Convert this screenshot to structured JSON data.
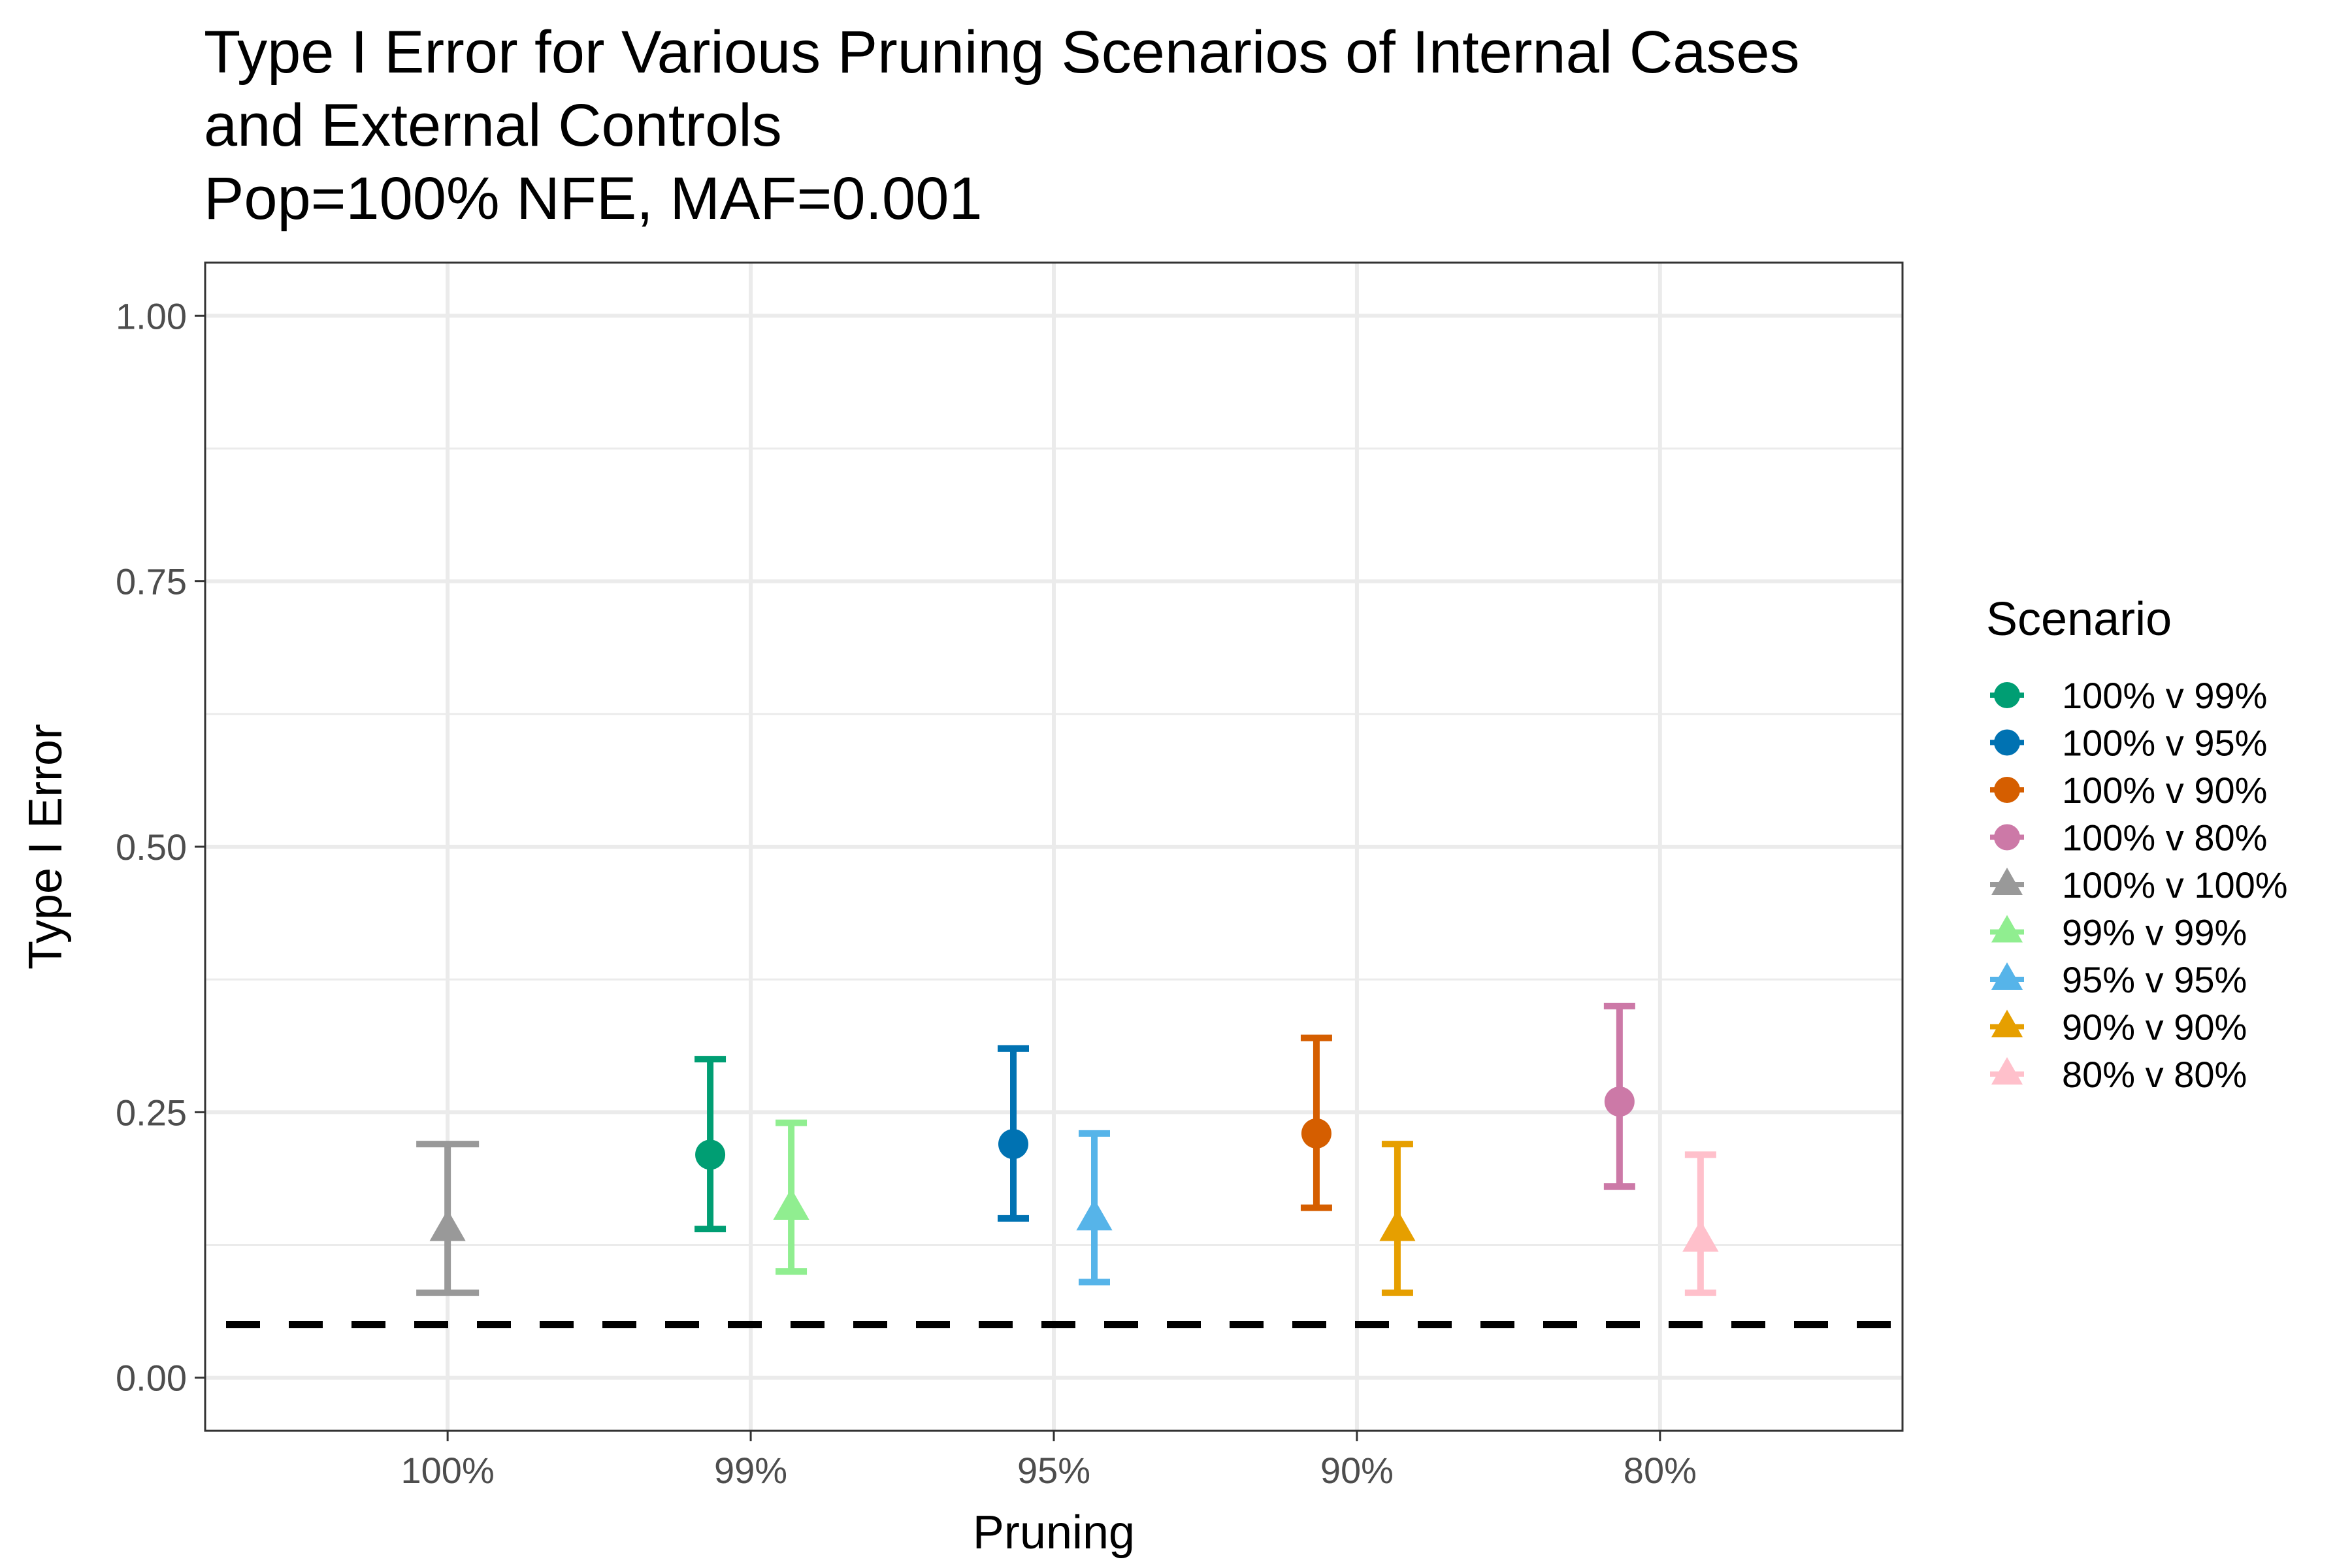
{
  "chart_data": {
    "type": "scatter",
    "title_lines": [
      "Type I Error for Various Pruning Scenarios of Internal Cases",
      "and External Controls",
      "Pop=100% NFE, MAF=0.001"
    ],
    "xlabel": "Pruning",
    "ylabel": "Type I Error",
    "categories": [
      "100%",
      "99%",
      "95%",
      "90%",
      "80%"
    ],
    "ylim": [
      -0.05,
      1.05
    ],
    "yticks": [
      0.0,
      0.25,
      0.5,
      0.75,
      1.0
    ],
    "ytick_labels": [
      "0.00",
      "0.25",
      "0.50",
      "0.75",
      "1.00"
    ],
    "grid": true,
    "reference_line": {
      "y": 0.05,
      "style": "dashed",
      "color": "#000000"
    },
    "legend": {
      "title": "Scenario",
      "placement": "right"
    },
    "series": [
      {
        "name": "100% v 99%",
        "shape": "circle",
        "color": "#009E73",
        "category": "99%",
        "dodge": -1,
        "y": 0.21,
        "ymin": 0.14,
        "ymax": 0.3
      },
      {
        "name": "100% v 95%",
        "shape": "circle",
        "color": "#0072B2",
        "category": "95%",
        "dodge": -1,
        "y": 0.22,
        "ymin": 0.15,
        "ymax": 0.31
      },
      {
        "name": "100% v 90%",
        "shape": "circle",
        "color": "#D55E00",
        "category": "90%",
        "dodge": -1,
        "y": 0.23,
        "ymin": 0.16,
        "ymax": 0.32
      },
      {
        "name": "100% v 80%",
        "shape": "circle",
        "color": "#CC79A7",
        "category": "80%",
        "dodge": -1,
        "y": 0.26,
        "ymin": 0.18,
        "ymax": 0.35
      },
      {
        "name": "100% v 100%",
        "shape": "triangle",
        "color": "#999999",
        "category": "100%",
        "dodge": 0,
        "y": 0.14,
        "ymin": 0.08,
        "ymax": 0.22
      },
      {
        "name": "99% v 99%",
        "shape": "triangle",
        "color": "#90EE90",
        "category": "99%",
        "dodge": 1,
        "y": 0.16,
        "ymin": 0.1,
        "ymax": 0.24
      },
      {
        "name": "95% v 95%",
        "shape": "triangle",
        "color": "#56B4E9",
        "category": "95%",
        "dodge": 1,
        "y": 0.15,
        "ymin": 0.09,
        "ymax": 0.23
      },
      {
        "name": "90% v 90%",
        "shape": "triangle",
        "color": "#E69F00",
        "category": "90%",
        "dodge": 1,
        "y": 0.14,
        "ymin": 0.08,
        "ymax": 0.22
      },
      {
        "name": "80% v 80%",
        "shape": "triangle",
        "color": "#FFC0CB",
        "category": "80%",
        "dodge": 1,
        "y": 0.13,
        "ymin": 0.08,
        "ymax": 0.21
      }
    ]
  }
}
